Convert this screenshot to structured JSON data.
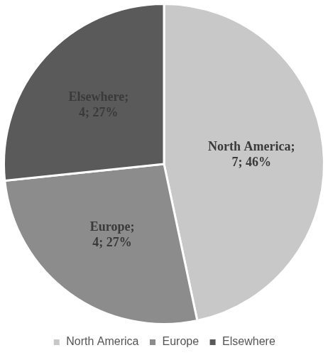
{
  "chart_data": {
    "type": "pie",
    "categories": [
      "North America",
      "Europe",
      "Elsewhere"
    ],
    "values": [
      7,
      4,
      4
    ],
    "value_labels": [
      "North America; 7; 46%",
      "Europe; 4; 27%",
      "Elsewhere; 4; 27%"
    ],
    "colors": [
      "#c8c8c8",
      "#8c8c8c",
      "#5a5a5a"
    ],
    "data_labels": true,
    "legend": "bottom"
  }
}
